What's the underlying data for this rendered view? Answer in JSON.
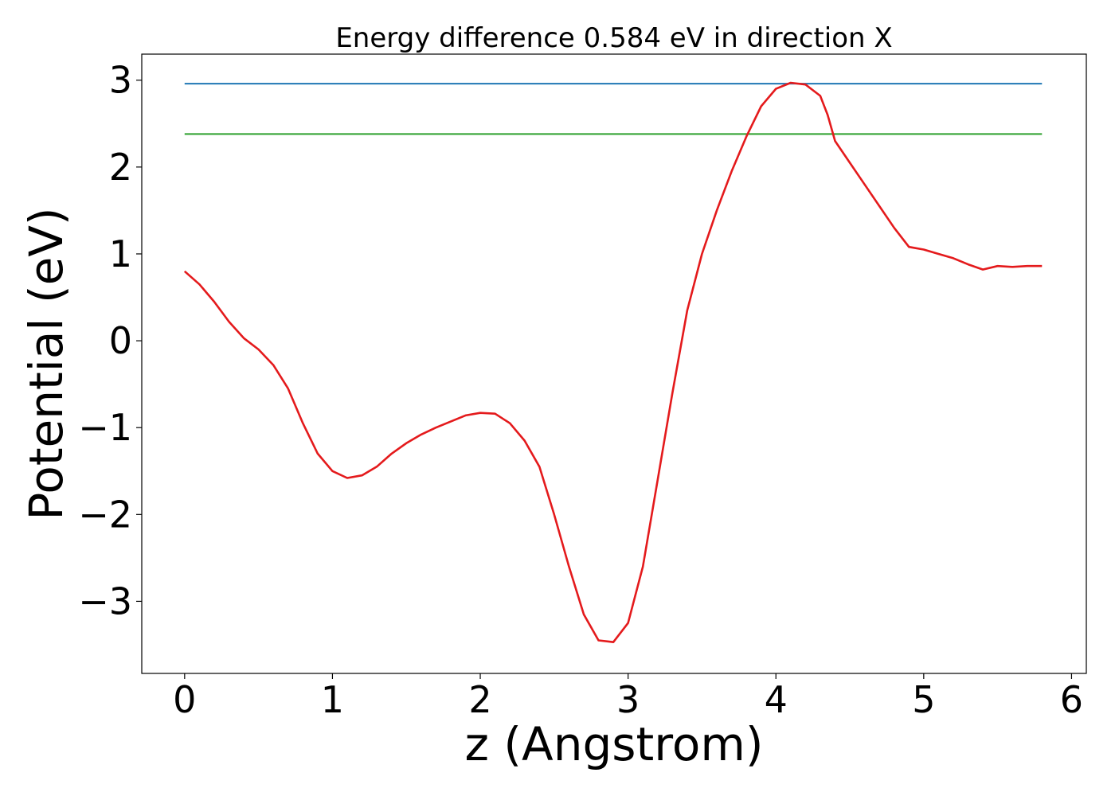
{
  "chart_data": {
    "type": "line",
    "title": "Energy difference 0.584 eV in direction X",
    "xlabel": "z (Angstrom)",
    "ylabel": "Potential (eV)",
    "xlim": [
      -0.29,
      6.1
    ],
    "ylim": [
      -3.83,
      3.3
    ],
    "xticks": [
      0,
      1,
      2,
      3,
      4,
      5,
      6
    ],
    "yticks": [
      -3,
      -2,
      -1,
      0,
      1,
      2,
      3
    ],
    "xtick_labels": [
      "0",
      "1",
      "2",
      "3",
      "4",
      "5",
      "6"
    ],
    "ytick_labels": [
      "−3",
      "−2",
      "−1",
      "0",
      "1",
      "2",
      "3"
    ],
    "grid": false,
    "legend": "none",
    "series": [
      {
        "color": "#1f77b4",
        "x": [
          0,
          5.8
        ],
        "y": [
          2.96,
          2.96
        ]
      },
      {
        "color": "#2ca02c",
        "x": [
          0,
          5.8
        ],
        "y": [
          2.38,
          2.38
        ]
      },
      {
        "color": "#e41a1c",
        "x": [
          0,
          0.1,
          0.2,
          0.3,
          0.4,
          0.5,
          0.6,
          0.7,
          0.8,
          0.9,
          1.0,
          1.1,
          1.2,
          1.3,
          1.4,
          1.5,
          1.6,
          1.7,
          1.8,
          1.9,
          2.0,
          2.1,
          2.2,
          2.3,
          2.4,
          2.5,
          2.6,
          2.7,
          2.8,
          2.9,
          3.0,
          3.1,
          3.2,
          3.3,
          3.4,
          3.5,
          3.6,
          3.7,
          3.8,
          3.9,
          4.0,
          4.1,
          4.2,
          4.3,
          4.35,
          4.4,
          4.5,
          4.6,
          4.7,
          4.8,
          4.9,
          5.0,
          5.1,
          5.2,
          5.3,
          5.4,
          5.5,
          5.6,
          5.7,
          5.8
        ],
        "y": [
          0.8,
          0.65,
          0.45,
          0.22,
          0.03,
          -0.1,
          -0.28,
          -0.55,
          -0.95,
          -1.3,
          -1.5,
          -1.58,
          -1.55,
          -1.45,
          -1.3,
          -1.18,
          -1.08,
          -1.0,
          -0.93,
          -0.86,
          -0.83,
          -0.84,
          -0.95,
          -1.15,
          -1.45,
          -2.0,
          -2.6,
          -3.15,
          -3.45,
          -3.47,
          -3.25,
          -2.6,
          -1.6,
          -0.6,
          0.35,
          1.0,
          1.5,
          1.95,
          2.35,
          2.7,
          2.9,
          2.97,
          2.95,
          2.82,
          2.6,
          2.3,
          2.05,
          1.8,
          1.55,
          1.3,
          1.08,
          1.05,
          1.0,
          0.95,
          0.88,
          0.82,
          0.86,
          0.85,
          0.86,
          0.86
        ]
      }
    ]
  }
}
